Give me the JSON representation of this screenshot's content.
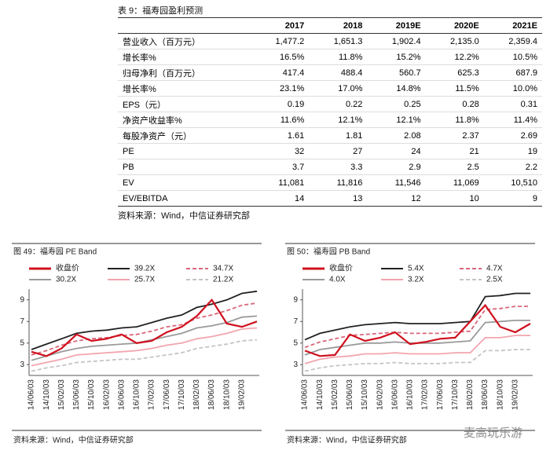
{
  "table": {
    "title": "表 9：福寿园盈利预测",
    "columns": [
      "2017",
      "2018",
      "2019E",
      "2020E",
      "2021E"
    ],
    "rows": [
      {
        "label": "营业收入（百万元）",
        "values": [
          "1,477.2",
          "1,651.3",
          "1,902.4",
          "2,135.0",
          "2,359.4"
        ]
      },
      {
        "label": "增长率%",
        "values": [
          "16.5%",
          "11.8%",
          "15.2%",
          "12.2%",
          "10.5%"
        ]
      },
      {
        "label": "归母净利（百万元）",
        "values": [
          "417.4",
          "488.4",
          "560.7",
          "625.3",
          "687.9"
        ]
      },
      {
        "label": "增长率%",
        "values": [
          "23.1%",
          "17.0%",
          "14.8%",
          "11.5%",
          "10.0%"
        ]
      },
      {
        "label": "EPS（元）",
        "values": [
          "0.19",
          "0.22",
          "0.25",
          "0.28",
          "0.31"
        ]
      },
      {
        "label": "净资产收益率%",
        "values": [
          "11.6%",
          "12.1%",
          "12.1%",
          "11.8%",
          "11.4%"
        ]
      },
      {
        "label": "每股净资产（元）",
        "values": [
          "1.61",
          "1.81",
          "2.08",
          "2.37",
          "2.69"
        ]
      },
      {
        "label": "PE",
        "values": [
          "32",
          "27",
          "24",
          "21",
          "19"
        ]
      },
      {
        "label": "PB",
        "values": [
          "3.7",
          "3.3",
          "2.9",
          "2.5",
          "2.2"
        ]
      },
      {
        "label": "EV",
        "values": [
          "11,081",
          "11,816",
          "11,546",
          "11,069",
          "10,510"
        ]
      },
      {
        "label": "EV/EBITDA",
        "values": [
          "14",
          "13",
          "12",
          "10",
          "9"
        ]
      }
    ],
    "source": "资料来源：Wind，中信证券研究部"
  },
  "chart_data": [
    {
      "type": "line",
      "title": "图 49：福寿园 PE Band",
      "source": "资料来源：Wind，中信证券研究部",
      "categories": [
        "14/06/03",
        "14/10/03",
        "15/02/03",
        "15/06/03",
        "15/10/03",
        "16/02/03",
        "16/06/03",
        "16/10/03",
        "17/02/03",
        "17/06/03",
        "17/10/03",
        "18/02/03",
        "18/06/03",
        "18/10/03",
        "19/02/03",
        null
      ],
      "ylim": [
        2,
        10
      ],
      "yticks": [
        3,
        5,
        7,
        9
      ],
      "series": [
        {
          "name": "收盘价",
          "color": "#d0101e",
          "style": "solid",
          "values": [
            4.2,
            3.8,
            4.5,
            5.8,
            5.2,
            5.4,
            5.8,
            5.0,
            5.2,
            6.0,
            6.5,
            7.5,
            9.0,
            6.8,
            6.5,
            7.0
          ]
        },
        {
          "name": "39.2X",
          "color": "#222222",
          "style": "solid",
          "values": [
            4.4,
            4.9,
            5.4,
            5.9,
            6.1,
            6.2,
            6.4,
            6.5,
            6.9,
            7.3,
            7.6,
            8.3,
            8.6,
            9.0,
            9.6,
            9.8
          ]
        },
        {
          "name": "34.7X",
          "color": "#d9677a",
          "style": "dashed",
          "values": [
            3.9,
            4.3,
            4.8,
            5.2,
            5.4,
            5.5,
            5.7,
            5.8,
            6.1,
            6.5,
            6.7,
            7.3,
            7.6,
            8.0,
            8.5,
            8.7
          ]
        },
        {
          "name": "30.2X",
          "color": "#9a9a9a",
          "style": "solid",
          "values": [
            3.4,
            3.8,
            4.2,
            4.5,
            4.7,
            4.8,
            4.9,
            5.0,
            5.3,
            5.6,
            5.9,
            6.4,
            6.6,
            6.9,
            7.4,
            7.5
          ]
        },
        {
          "name": "25.7X",
          "color": "#f2a5ae",
          "style": "solid",
          "values": [
            2.9,
            3.2,
            3.5,
            3.9,
            4.0,
            4.1,
            4.2,
            4.3,
            4.5,
            4.8,
            5.0,
            5.4,
            5.6,
            5.9,
            6.3,
            6.4
          ]
        },
        {
          "name": "21.2X",
          "color": "#c4c4c4",
          "style": "dashed",
          "values": [
            2.4,
            2.7,
            2.9,
            3.2,
            3.3,
            3.4,
            3.5,
            3.5,
            3.7,
            3.9,
            4.1,
            4.5,
            4.7,
            4.9,
            5.2,
            5.3
          ]
        }
      ]
    },
    {
      "type": "line",
      "title": "图 50：福寿园 PB Band",
      "source": "资料来源：Wind，中信证券研究部",
      "categories": [
        "14/06/03",
        "14/10/03",
        "15/02/03",
        "15/06/03",
        "15/10/03",
        "16/02/03",
        "16/06/03",
        "16/10/03",
        "17/02/03",
        "17/06/03",
        "17/10/03",
        "18/02/03",
        "18/06/03",
        "18/10/03",
        "19/02/03",
        null
      ],
      "ylim": [
        2,
        10
      ],
      "yticks": [
        3,
        5,
        7,
        9
      ],
      "series": [
        {
          "name": "收盘价",
          "color": "#d0101e",
          "style": "solid",
          "values": [
            4.3,
            3.8,
            3.9,
            5.8,
            5.2,
            5.5,
            6.0,
            4.9,
            5.1,
            5.4,
            5.5,
            7.0,
            8.5,
            6.5,
            6.0,
            6.8
          ]
        },
        {
          "name": "5.4X",
          "color": "#222222",
          "style": "solid",
          "values": [
            5.3,
            5.9,
            6.2,
            6.5,
            6.7,
            6.8,
            6.9,
            6.8,
            6.8,
            6.8,
            6.9,
            7.0,
            9.3,
            9.4,
            9.6,
            9.6
          ]
        },
        {
          "name": "4.7X",
          "color": "#d9677a",
          "style": "dashed",
          "values": [
            4.6,
            5.1,
            5.4,
            5.7,
            5.8,
            5.9,
            6.0,
            5.9,
            5.9,
            5.9,
            6.0,
            6.1,
            8.1,
            8.2,
            8.4,
            8.4
          ]
        },
        {
          "name": "4.0X",
          "color": "#9a9a9a",
          "style": "solid",
          "values": [
            3.9,
            4.4,
            4.6,
            4.8,
            5.0,
            5.0,
            5.1,
            5.0,
            5.0,
            5.0,
            5.1,
            5.2,
            6.9,
            7.0,
            7.1,
            7.1
          ]
        },
        {
          "name": "3.2X",
          "color": "#f2a5ae",
          "style": "solid",
          "values": [
            3.1,
            3.5,
            3.7,
            3.8,
            4.0,
            4.0,
            4.1,
            4.0,
            4.0,
            4.0,
            4.1,
            4.1,
            5.5,
            5.5,
            5.7,
            5.7
          ]
        },
        {
          "name": "2.5X",
          "color": "#c4c4c4",
          "style": "dashed",
          "values": [
            2.4,
            2.7,
            2.9,
            3.0,
            3.1,
            3.1,
            3.2,
            3.1,
            3.1,
            3.1,
            3.2,
            3.2,
            4.3,
            4.3,
            4.4,
            4.4
          ]
        }
      ]
    }
  ],
  "watermark": "麦高玩乐游"
}
